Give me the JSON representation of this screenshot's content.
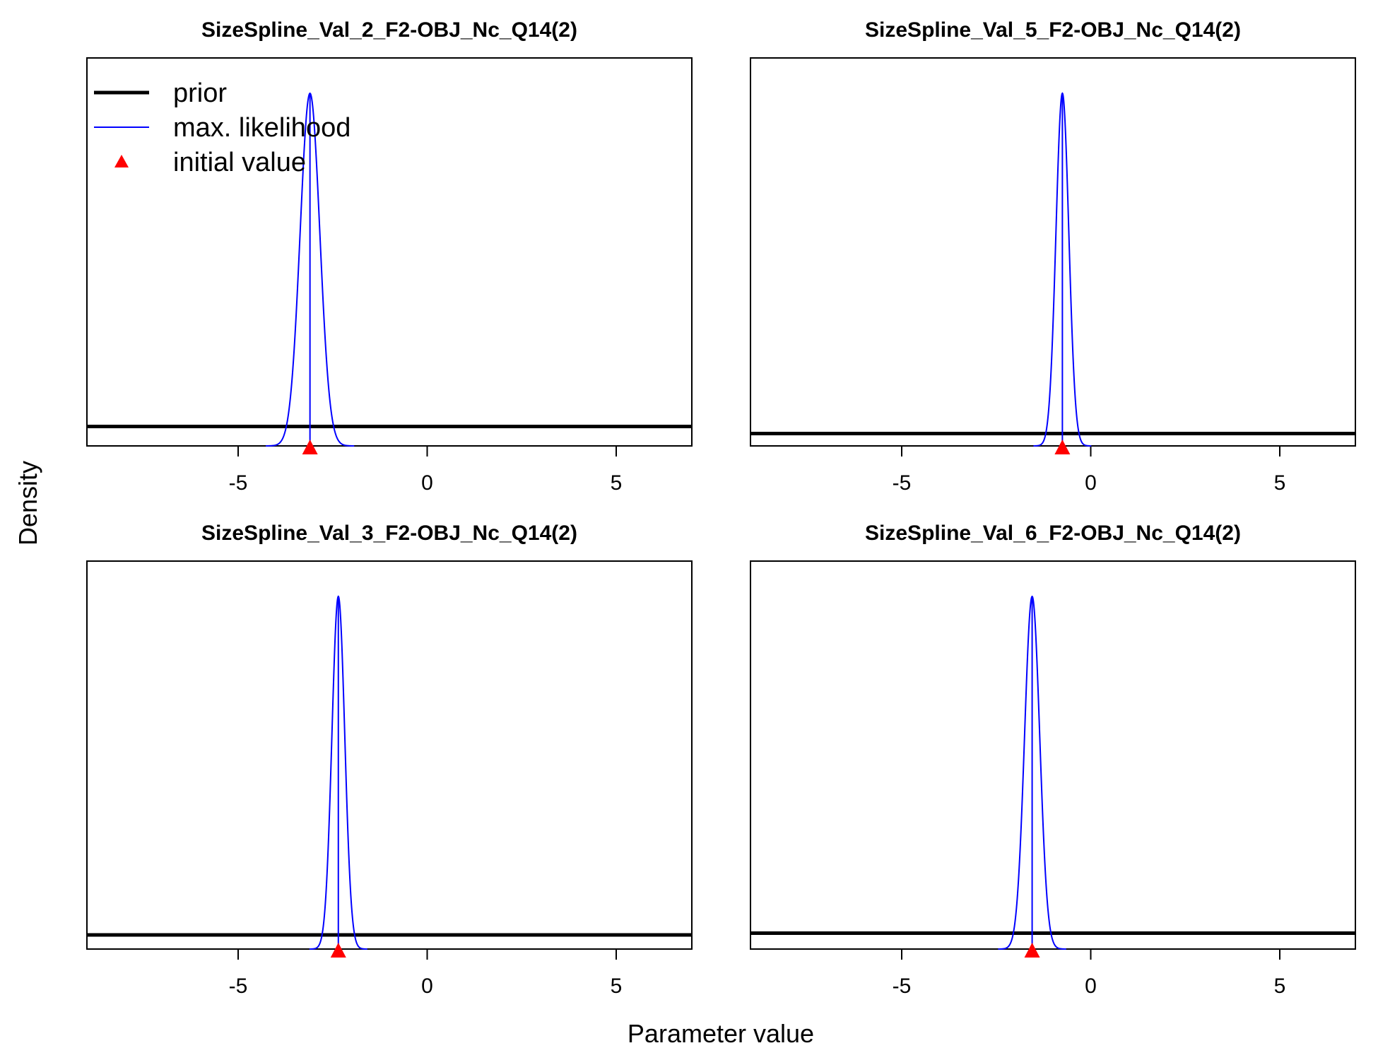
{
  "chart_data": [
    {
      "type": "line",
      "title": "SizeSpline_Val_2_F2-OBJ_Nc_Q14(2)",
      "xlim": [
        -9,
        7
      ],
      "x_ticks": [
        -5,
        0,
        5
      ],
      "x_tick_labels": [
        "-5",
        "0",
        "5"
      ],
      "series": [
        {
          "name": "prior",
          "kind": "uniform",
          "color": "#000000",
          "relative_height": 0.055
        },
        {
          "name": "max. likelihood",
          "kind": "normal",
          "mean": -3.1,
          "sd": 0.26,
          "color": "#0000ff"
        },
        {
          "name": "initial value",
          "kind": "point",
          "x": -3.1,
          "color": "#ff0000"
        }
      ]
    },
    {
      "type": "line",
      "title": "SizeSpline_Val_5_F2-OBJ_Nc_Q14(2)",
      "xlim": [
        -9,
        7
      ],
      "x_ticks": [
        -5,
        0,
        5
      ],
      "x_tick_labels": [
        "-5",
        "0",
        "5"
      ],
      "series": [
        {
          "name": "prior",
          "kind": "uniform",
          "color": "#000000",
          "relative_height": 0.035
        },
        {
          "name": "max. likelihood",
          "kind": "normal",
          "mean": -0.75,
          "sd": 0.17,
          "color": "#0000ff"
        },
        {
          "name": "initial value",
          "kind": "point",
          "x": -0.75,
          "color": "#ff0000"
        }
      ]
    },
    {
      "type": "line",
      "title": "SizeSpline_Val_3_F2-OBJ_Nc_Q14(2)",
      "xlim": [
        -9,
        7
      ],
      "x_ticks": [
        -5,
        0,
        5
      ],
      "x_tick_labels": [
        "-5",
        "0",
        "5"
      ],
      "series": [
        {
          "name": "prior",
          "kind": "uniform",
          "color": "#000000",
          "relative_height": 0.04
        },
        {
          "name": "max. likelihood",
          "kind": "normal",
          "mean": -2.35,
          "sd": 0.17,
          "color": "#0000ff"
        },
        {
          "name": "initial value",
          "kind": "point",
          "x": -2.35,
          "color": "#ff0000"
        }
      ]
    },
    {
      "type": "line",
      "title": "SizeSpline_Val_6_F2-OBJ_Nc_Q14(2)",
      "xlim": [
        -9,
        7
      ],
      "x_ticks": [
        -5,
        0,
        5
      ],
      "x_tick_labels": [
        "-5",
        "0",
        "5"
      ],
      "series": [
        {
          "name": "prior",
          "kind": "uniform",
          "color": "#000000",
          "relative_height": 0.045
        },
        {
          "name": "max. likelihood",
          "kind": "normal",
          "mean": -1.55,
          "sd": 0.2,
          "color": "#0000ff"
        },
        {
          "name": "initial value",
          "kind": "point",
          "x": -1.55,
          "color": "#ff0000"
        }
      ]
    }
  ],
  "xlabel": "Parameter value",
  "ylabel": "Density",
  "legend": {
    "placement": "top-left of first panel",
    "items": [
      {
        "label": "prior",
        "symbol": "thick-line",
        "color": "#000000"
      },
      {
        "label": "max. likelihood",
        "symbol": "thin-line",
        "color": "#0000ff"
      },
      {
        "label": "initial value",
        "symbol": "triangle",
        "color": "#ff0000"
      }
    ]
  }
}
